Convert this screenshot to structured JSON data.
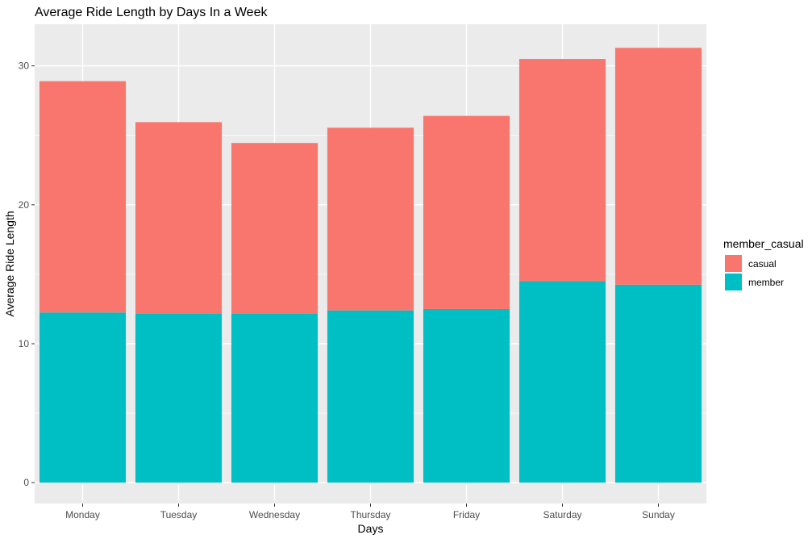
{
  "chart_data": {
    "type": "bar",
    "stacked": true,
    "title": "Average Ride Length by Days In a Week",
    "xlabel": "Days",
    "ylabel": "Average Ride Length",
    "categories": [
      "Monday",
      "Tuesday",
      "Wednesday",
      "Thursday",
      "Friday",
      "Saturday",
      "Sunday"
    ],
    "series": [
      {
        "name": "casual",
        "values": [
          16.65,
          13.8,
          12.3,
          13.15,
          13.9,
          16.0,
          17.05
        ],
        "color": "#F8766D"
      },
      {
        "name": "member",
        "values": [
          12.25,
          12.15,
          12.15,
          12.4,
          12.5,
          14.5,
          14.25
        ],
        "color": "#00BFC4"
      }
    ],
    "stack_order": [
      "member",
      "casual"
    ],
    "ylim": [
      -1.5,
      33
    ],
    "yticks": [
      0,
      10,
      20,
      30
    ],
    "grid": true,
    "legend": {
      "title": "member_casual",
      "placement": "right",
      "entries": [
        "casual",
        "member"
      ]
    },
    "colors": {
      "panel_background": "#EBEBEB",
      "grid_line": "#FFFFFF",
      "text": "#4D4D4D",
      "title": "#000000"
    }
  }
}
